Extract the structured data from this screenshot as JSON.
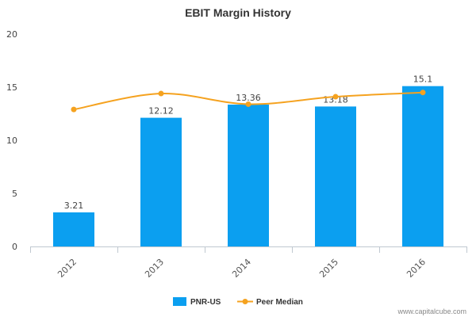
{
  "chart_data": {
    "type": "bar",
    "title": "EBIT Margin History",
    "categories": [
      "2012",
      "2013",
      "2014",
      "2015",
      "2016"
    ],
    "series": [
      {
        "name": "PNR-US",
        "kind": "bar",
        "values": [
          3.21,
          12.12,
          13.36,
          13.18,
          15.1
        ],
        "labels": [
          "3.21",
          "12.12",
          "13.36",
          "13.18",
          "15.1"
        ],
        "color": "#0b9ff0"
      },
      {
        "name": "Peer Median",
        "kind": "line",
        "values": [
          12.9,
          14.4,
          13.4,
          14.1,
          14.5
        ],
        "color": "#f5a21f"
      }
    ],
    "ylim": [
      0,
      20
    ],
    "yticks": [
      "0",
      "5",
      "10",
      "15",
      "20"
    ],
    "xlabel": "",
    "ylabel": "",
    "grid": false,
    "legend_position": "bottom-center"
  },
  "credit": "www.capitalcube.com"
}
